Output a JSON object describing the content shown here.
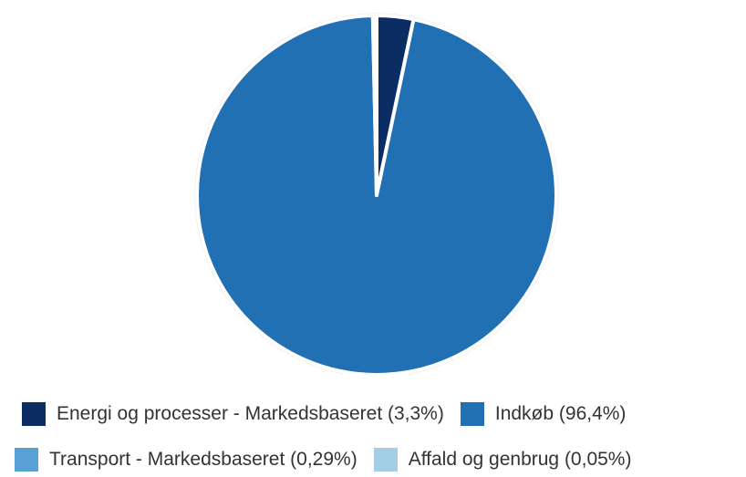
{
  "chart_data": {
    "type": "pie",
    "series": [
      {
        "name": "Energi og processer - Markedsbaseret",
        "label": "Energi og processer - Markedsbaseret (3,3%)",
        "value": 3.3,
        "color": "#0b2d63"
      },
      {
        "name": "Indkøb",
        "label": "Indkøb (96,4%)",
        "value": 96.4,
        "color": "#2270b4"
      },
      {
        "name": "Transport - Markedsbaseret",
        "label": "Transport - Markedsbaseret (0,29%)",
        "value": 0.29,
        "color": "#5aa1d6"
      },
      {
        "name": "Affald og genbrug",
        "label": "Affald og genbrug (0,05%)",
        "value": 0.05,
        "color": "#a6cde6"
      }
    ],
    "legend_position": "bottom"
  }
}
